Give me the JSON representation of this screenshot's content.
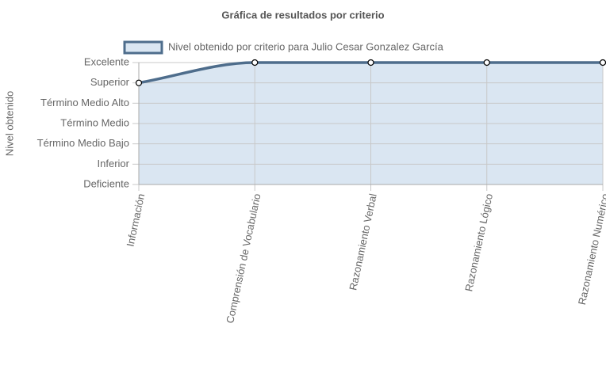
{
  "chart_data": {
    "type": "area",
    "title": "Gráfica de resultados por criterio",
    "y_label": "Nivel obtenido",
    "categories": [
      "Información",
      "Comprensión de Vocabulario",
      "Razonamiento Verbal",
      "Razonamiento Lógico",
      "Razonamiento Numérico"
    ],
    "series": [
      {
        "name": "Nivel obtenido por criterio para Julio Cesar Gonzalez García",
        "color": "#4e6d8c",
        "fill": "#dae6f2",
        "values": [
          5,
          6,
          6,
          6,
          6
        ]
      }
    ],
    "ylim": [
      0,
      6
    ],
    "yticks": [
      {
        "value": 0,
        "label": "Deficiente"
      },
      {
        "value": 1,
        "label": "Inferior"
      },
      {
        "value": 2,
        "label": "Término Medio Bajo"
      },
      {
        "value": 3,
        "label": "Término Medio"
      },
      {
        "value": 4,
        "label": "Término Medio Alto"
      },
      {
        "value": 5,
        "label": "Superior"
      },
      {
        "value": 6,
        "label": "Excelente"
      }
    ],
    "grid": true
  }
}
